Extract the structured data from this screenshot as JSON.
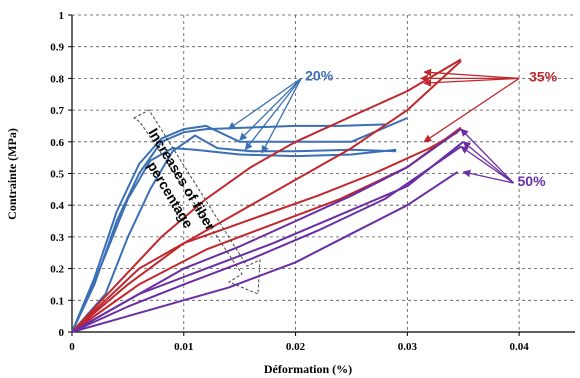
{
  "chart_data": {
    "type": "line",
    "title": "",
    "xlabel": "Déformation (%)",
    "ylabel": "Contrainte (MPa)",
    "xlim": [
      0,
      0.045
    ],
    "ylim": [
      0,
      1
    ],
    "x_ticks": [
      "0",
      "0.01",
      "0.02",
      "0.03",
      "0.04"
    ],
    "y_ticks": [
      "0",
      "0.1",
      "0.2",
      "0.3",
      "0.4",
      "0.5",
      "0.6",
      "0.7",
      "0.8",
      "0.9",
      "1"
    ],
    "x_tick_values": [
      0,
      0.01,
      0.02,
      0.03,
      0.04
    ],
    "y_tick_values": [
      0,
      0.1,
      0.2,
      0.3,
      0.4,
      0.5,
      0.6,
      0.7,
      0.8,
      0.9,
      1.0
    ],
    "grid": true,
    "series": [
      {
        "name": "20%",
        "color": "#3b6fb6",
        "label_anchor": [
          0.0205,
          0.8
        ],
        "curves": [
          {
            "points": [
              [
                0,
                0
              ],
              [
                0.002,
                0.15
              ],
              [
                0.004,
                0.35
              ],
              [
                0.006,
                0.5
              ],
              [
                0.008,
                0.6
              ],
              [
                0.01,
                0.63
              ],
              [
                0.012,
                0.64
              ],
              [
                0.016,
                0.645
              ],
              [
                0.02,
                0.65
              ],
              [
                0.024,
                0.65
              ],
              [
                0.028,
                0.655
              ]
            ]
          },
          {
            "points": [
              [
                0,
                0
              ],
              [
                0.002,
                0.17
              ],
              [
                0.004,
                0.38
              ],
              [
                0.006,
                0.53
              ],
              [
                0.008,
                0.61
              ],
              [
                0.01,
                0.64
              ],
              [
                0.012,
                0.65
              ],
              [
                0.015,
                0.6
              ],
              [
                0.02,
                0.6
              ],
              [
                0.025,
                0.6
              ],
              [
                0.03,
                0.675
              ]
            ]
          },
          {
            "points": [
              [
                0,
                0
              ],
              [
                0.0025,
                0.2
              ],
              [
                0.005,
                0.42
              ],
              [
                0.007,
                0.54
              ],
              [
                0.009,
                0.58
              ],
              [
                0.011,
                0.575
              ],
              [
                0.015,
                0.56
              ],
              [
                0.02,
                0.555
              ],
              [
                0.025,
                0.56
              ],
              [
                0.029,
                0.575
              ]
            ]
          },
          {
            "points": [
              [
                0,
                0
              ],
              [
                0.003,
                0.12
              ],
              [
                0.005,
                0.3
              ],
              [
                0.007,
                0.45
              ],
              [
                0.009,
                0.57
              ],
              [
                0.011,
                0.62
              ],
              [
                0.013,
                0.58
              ],
              [
                0.016,
                0.57
              ],
              [
                0.02,
                0.57
              ],
              [
                0.025,
                0.575
              ],
              [
                0.029,
                0.57
              ]
            ]
          }
        ],
        "pointer_targets": [
          [
            0.014,
            0.64
          ],
          [
            0.015,
            0.605
          ],
          [
            0.0155,
            0.575
          ],
          [
            0.017,
            0.565
          ]
        ]
      },
      {
        "name": "35%",
        "color": "#c0282d",
        "label_anchor": [
          0.04,
          0.8
        ],
        "curves": [
          {
            "points": [
              [
                0,
                0
              ],
              [
                0.004,
                0.15
              ],
              [
                0.008,
                0.3
              ],
              [
                0.012,
                0.42
              ],
              [
                0.016,
                0.52
              ],
              [
                0.02,
                0.6
              ],
              [
                0.025,
                0.68
              ],
              [
                0.03,
                0.76
              ],
              [
                0.0348,
                0.86
              ]
            ]
          },
          {
            "points": [
              [
                0,
                0
              ],
              [
                0.005,
                0.15
              ],
              [
                0.01,
                0.28
              ],
              [
                0.015,
                0.38
              ],
              [
                0.02,
                0.48
              ],
              [
                0.025,
                0.58
              ],
              [
                0.03,
                0.7
              ],
              [
                0.0348,
                0.855
              ]
            ]
          },
          {
            "points": [
              [
                0,
                0
              ],
              [
                0.006,
                0.15
              ],
              [
                0.012,
                0.26
              ],
              [
                0.018,
                0.34
              ],
              [
                0.024,
                0.42
              ],
              [
                0.03,
                0.52
              ],
              [
                0.0348,
                0.645
              ]
            ]
          },
          {
            "points": [
              [
                0,
                0
              ],
              [
                0.006,
                0.2
              ],
              [
                0.01,
                0.28
              ],
              [
                0.014,
                0.33
              ],
              [
                0.018,
                0.38
              ],
              [
                0.022,
                0.43
              ],
              [
                0.027,
                0.5
              ],
              [
                0.032,
                0.58
              ],
              [
                0.0345,
                0.63
              ]
            ]
          }
        ],
        "pointer_targets": [
          [
            0.0315,
            0.82
          ],
          [
            0.0312,
            0.8
          ],
          [
            0.0315,
            0.785
          ],
          [
            0.0315,
            0.6
          ]
        ]
      },
      {
        "name": "50%",
        "color": "#6a2ea4",
        "label_anchor": [
          0.0395,
          0.47
        ],
        "curves": [
          {
            "points": [
              [
                0,
                0
              ],
              [
                0.005,
                0.1
              ],
              [
                0.01,
                0.2
              ],
              [
                0.015,
                0.27
              ],
              [
                0.02,
                0.35
              ],
              [
                0.025,
                0.43
              ],
              [
                0.03,
                0.52
              ],
              [
                0.0348,
                0.64
              ]
            ]
          },
          {
            "points": [
              [
                0,
                0
              ],
              [
                0.006,
                0.12
              ],
              [
                0.012,
                0.2
              ],
              [
                0.018,
                0.28
              ],
              [
                0.024,
                0.37
              ],
              [
                0.03,
                0.46
              ],
              [
                0.035,
                0.6
              ]
            ]
          },
          {
            "points": [
              [
                0,
                0
              ],
              [
                0.005,
                0.08
              ],
              [
                0.01,
                0.15
              ],
              [
                0.016,
                0.23
              ],
              [
                0.022,
                0.32
              ],
              [
                0.028,
                0.42
              ],
              [
                0.0348,
                0.585
              ]
            ]
          },
          {
            "points": [
              [
                0,
                0
              ],
              [
                0.007,
                0.07
              ],
              [
                0.014,
                0.14
              ],
              [
                0.02,
                0.22
              ],
              [
                0.025,
                0.31
              ],
              [
                0.03,
                0.4
              ],
              [
                0.0345,
                0.505
              ]
            ]
          }
        ],
        "pointer_targets": [
          [
            0.0348,
            0.64
          ],
          [
            0.035,
            0.6
          ],
          [
            0.0348,
            0.585
          ],
          [
            0.035,
            0.505
          ]
        ]
      }
    ],
    "annotation": {
      "text_line1": "Increases of fiber",
      "text_line2": "percentage"
    }
  }
}
